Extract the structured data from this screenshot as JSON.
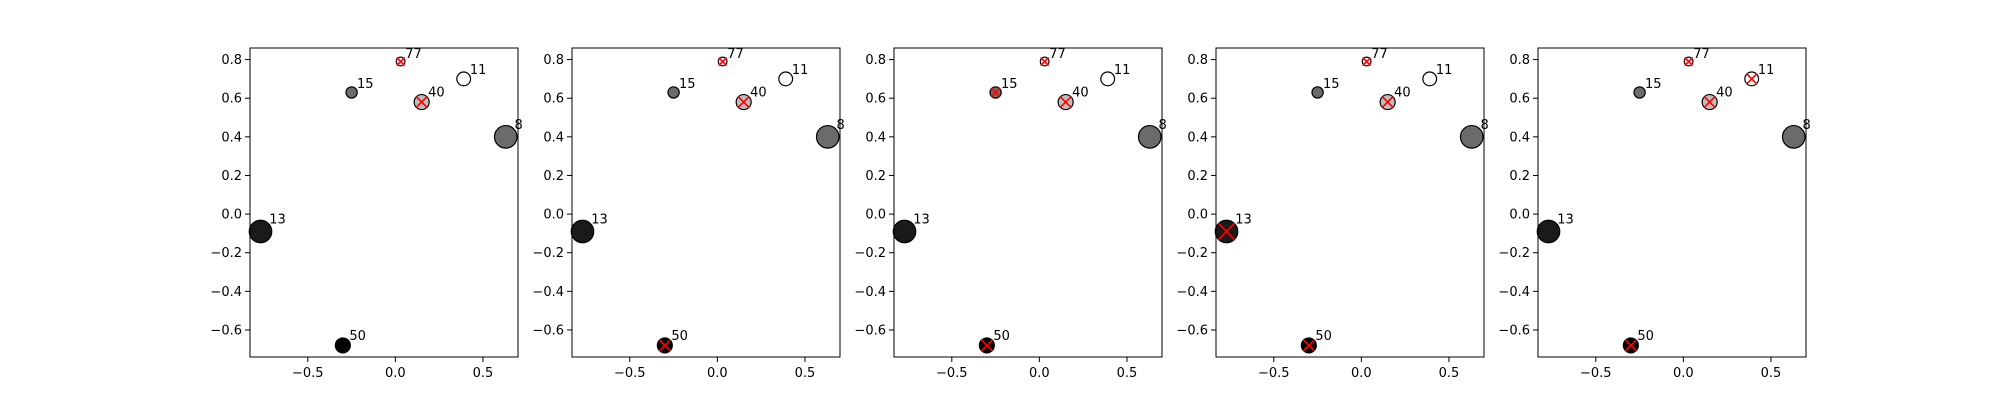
{
  "chart_data": [
    {
      "type": "scatter",
      "xlim": [
        -0.83,
        0.7
      ],
      "ylim": [
        -0.74,
        0.86
      ],
      "xticks": [
        {
          "v": -0.5,
          "label": "−0.5"
        },
        {
          "v": 0.0,
          "label": "0.0"
        },
        {
          "v": 0.5,
          "label": "0.5"
        }
      ],
      "yticks": [
        {
          "v": -0.6,
          "label": "−0.6"
        },
        {
          "v": -0.4,
          "label": "−0.4"
        },
        {
          "v": -0.2,
          "label": "−0.2"
        },
        {
          "v": 0.0,
          "label": "0.0"
        },
        {
          "v": 0.2,
          "label": "0.2"
        },
        {
          "v": 0.4,
          "label": "0.4"
        },
        {
          "v": 0.6,
          "label": "0.6"
        },
        {
          "v": 0.8,
          "label": "0.8"
        }
      ],
      "points": [
        {
          "label": "77",
          "x": 0.03,
          "y": 0.79,
          "size": 3.5,
          "color": "#ffffff",
          "marked": true
        },
        {
          "label": "11",
          "x": 0.39,
          "y": 0.7,
          "size": 5.5,
          "color": "#ffffff",
          "marked": false
        },
        {
          "label": "15",
          "x": -0.25,
          "y": 0.63,
          "size": 4.5,
          "color": "#6b6b6b",
          "marked": false
        },
        {
          "label": "40",
          "x": 0.15,
          "y": 0.58,
          "size": 6,
          "color": "#bdbdbd",
          "marked": true
        },
        {
          "label": "8",
          "x": 0.63,
          "y": 0.4,
          "size": 9,
          "color": "#6b6b6b",
          "marked": false
        },
        {
          "label": "13",
          "x": -0.77,
          "y": -0.09,
          "size": 9,
          "color": "#1a1a1a",
          "marked": false
        },
        {
          "label": "50",
          "x": -0.3,
          "y": -0.68,
          "size": 6,
          "color": "#000000",
          "marked": false
        }
      ]
    },
    {
      "type": "scatter",
      "xlim": [
        -0.83,
        0.7
      ],
      "ylim": [
        -0.74,
        0.86
      ],
      "xticks": [
        {
          "v": -0.5,
          "label": "−0.5"
        },
        {
          "v": 0.0,
          "label": "0.0"
        },
        {
          "v": 0.5,
          "label": "0.5"
        }
      ],
      "yticks": [
        {
          "v": -0.6,
          "label": "−0.6"
        },
        {
          "v": -0.4,
          "label": "−0.4"
        },
        {
          "v": -0.2,
          "label": "−0.2"
        },
        {
          "v": 0.0,
          "label": "0.0"
        },
        {
          "v": 0.2,
          "label": "0.2"
        },
        {
          "v": 0.4,
          "label": "0.4"
        },
        {
          "v": 0.6,
          "label": "0.6"
        },
        {
          "v": 0.8,
          "label": "0.8"
        }
      ],
      "points": [
        {
          "label": "77",
          "x": 0.03,
          "y": 0.79,
          "size": 3.5,
          "color": "#ffffff",
          "marked": true
        },
        {
          "label": "11",
          "x": 0.39,
          "y": 0.7,
          "size": 5.5,
          "color": "#ffffff",
          "marked": false
        },
        {
          "label": "15",
          "x": -0.25,
          "y": 0.63,
          "size": 4.5,
          "color": "#6b6b6b",
          "marked": false
        },
        {
          "label": "40",
          "x": 0.15,
          "y": 0.58,
          "size": 6,
          "color": "#bdbdbd",
          "marked": true
        },
        {
          "label": "8",
          "x": 0.63,
          "y": 0.4,
          "size": 9,
          "color": "#6b6b6b",
          "marked": false
        },
        {
          "label": "13",
          "x": -0.77,
          "y": -0.09,
          "size": 9,
          "color": "#1a1a1a",
          "marked": false
        },
        {
          "label": "50",
          "x": -0.3,
          "y": -0.68,
          "size": 6,
          "color": "#000000",
          "marked": true
        }
      ]
    },
    {
      "type": "scatter",
      "xlim": [
        -0.83,
        0.7
      ],
      "ylim": [
        -0.74,
        0.86
      ],
      "xticks": [
        {
          "v": -0.5,
          "label": "−0.5"
        },
        {
          "v": 0.0,
          "label": "0.0"
        },
        {
          "v": 0.5,
          "label": "0.5"
        }
      ],
      "yticks": [
        {
          "v": -0.6,
          "label": "−0.6"
        },
        {
          "v": -0.4,
          "label": "−0.4"
        },
        {
          "v": -0.2,
          "label": "−0.2"
        },
        {
          "v": 0.0,
          "label": "0.0"
        },
        {
          "v": 0.2,
          "label": "0.2"
        },
        {
          "v": 0.4,
          "label": "0.4"
        },
        {
          "v": 0.6,
          "label": "0.6"
        },
        {
          "v": 0.8,
          "label": "0.8"
        }
      ],
      "points": [
        {
          "label": "77",
          "x": 0.03,
          "y": 0.79,
          "size": 3.5,
          "color": "#ffffff",
          "marked": true
        },
        {
          "label": "11",
          "x": 0.39,
          "y": 0.7,
          "size": 5.5,
          "color": "#ffffff",
          "marked": false
        },
        {
          "label": "15",
          "x": -0.25,
          "y": 0.63,
          "size": 4.5,
          "color": "#6b6b6b",
          "marked": true
        },
        {
          "label": "40",
          "x": 0.15,
          "y": 0.58,
          "size": 6,
          "color": "#bdbdbd",
          "marked": true
        },
        {
          "label": "8",
          "x": 0.63,
          "y": 0.4,
          "size": 9,
          "color": "#6b6b6b",
          "marked": false
        },
        {
          "label": "13",
          "x": -0.77,
          "y": -0.09,
          "size": 9,
          "color": "#1a1a1a",
          "marked": false
        },
        {
          "label": "50",
          "x": -0.3,
          "y": -0.68,
          "size": 6,
          "color": "#000000",
          "marked": true
        }
      ]
    },
    {
      "type": "scatter",
      "xlim": [
        -0.83,
        0.7
      ],
      "ylim": [
        -0.74,
        0.86
      ],
      "xticks": [
        {
          "v": -0.5,
          "label": "−0.5"
        },
        {
          "v": 0.0,
          "label": "0.0"
        },
        {
          "v": 0.5,
          "label": "0.5"
        }
      ],
      "yticks": [
        {
          "v": -0.6,
          "label": "−0.6"
        },
        {
          "v": -0.4,
          "label": "−0.4"
        },
        {
          "v": -0.2,
          "label": "−0.2"
        },
        {
          "v": 0.0,
          "label": "0.0"
        },
        {
          "v": 0.2,
          "label": "0.2"
        },
        {
          "v": 0.4,
          "label": "0.4"
        },
        {
          "v": 0.6,
          "label": "0.6"
        },
        {
          "v": 0.8,
          "label": "0.8"
        }
      ],
      "points": [
        {
          "label": "77",
          "x": 0.03,
          "y": 0.79,
          "size": 3.5,
          "color": "#ffffff",
          "marked": true
        },
        {
          "label": "11",
          "x": 0.39,
          "y": 0.7,
          "size": 5.5,
          "color": "#ffffff",
          "marked": false
        },
        {
          "label": "15",
          "x": -0.25,
          "y": 0.63,
          "size": 4.5,
          "color": "#6b6b6b",
          "marked": false
        },
        {
          "label": "40",
          "x": 0.15,
          "y": 0.58,
          "size": 6,
          "color": "#bdbdbd",
          "marked": true
        },
        {
          "label": "8",
          "x": 0.63,
          "y": 0.4,
          "size": 9,
          "color": "#6b6b6b",
          "marked": false
        },
        {
          "label": "13",
          "x": -0.77,
          "y": -0.09,
          "size": 9,
          "color": "#1a1a1a",
          "marked": true
        },
        {
          "label": "50",
          "x": -0.3,
          "y": -0.68,
          "size": 6,
          "color": "#000000",
          "marked": true
        }
      ]
    },
    {
      "type": "scatter",
      "xlim": [
        -0.83,
        0.7
      ],
      "ylim": [
        -0.74,
        0.86
      ],
      "xticks": [
        {
          "v": -0.5,
          "label": "−0.5"
        },
        {
          "v": 0.0,
          "label": "0.0"
        },
        {
          "v": 0.5,
          "label": "0.5"
        }
      ],
      "yticks": [
        {
          "v": -0.6,
          "label": "−0.6"
        },
        {
          "v": -0.4,
          "label": "−0.4"
        },
        {
          "v": -0.2,
          "label": "−0.2"
        },
        {
          "v": 0.0,
          "label": "0.0"
        },
        {
          "v": 0.2,
          "label": "0.2"
        },
        {
          "v": 0.4,
          "label": "0.4"
        },
        {
          "v": 0.6,
          "label": "0.6"
        },
        {
          "v": 0.8,
          "label": "0.8"
        }
      ],
      "points": [
        {
          "label": "77",
          "x": 0.03,
          "y": 0.79,
          "size": 3.5,
          "color": "#ffffff",
          "marked": true
        },
        {
          "label": "11",
          "x": 0.39,
          "y": 0.7,
          "size": 5.5,
          "color": "#ffffff",
          "marked": true
        },
        {
          "label": "15",
          "x": -0.25,
          "y": 0.63,
          "size": 4.5,
          "color": "#6b6b6b",
          "marked": false
        },
        {
          "label": "40",
          "x": 0.15,
          "y": 0.58,
          "size": 6,
          "color": "#bdbdbd",
          "marked": true
        },
        {
          "label": "8",
          "x": 0.63,
          "y": 0.4,
          "size": 9,
          "color": "#6b6b6b",
          "marked": false
        },
        {
          "label": "13",
          "x": -0.77,
          "y": -0.09,
          "size": 9,
          "color": "#1a1a1a",
          "marked": false
        },
        {
          "label": "50",
          "x": -0.3,
          "y": -0.68,
          "size": 6,
          "color": "#000000",
          "marked": true
        }
      ]
    }
  ],
  "style": {
    "axis_color": "#000000",
    "marker_edge_color": "#000000",
    "cross_color": "#ff0000",
    "background": "#ffffff"
  }
}
